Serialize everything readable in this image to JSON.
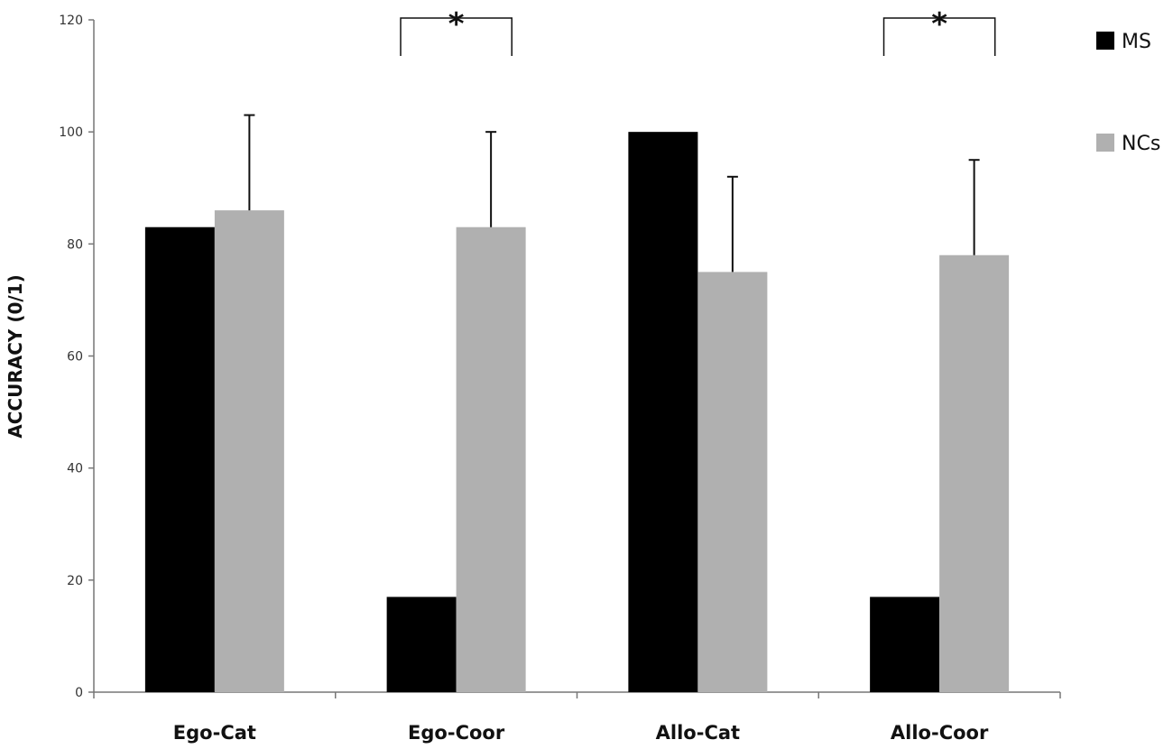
{
  "chart_data": {
    "type": "bar",
    "title": "",
    "xlabel": "",
    "ylabel": "ACCURACY (0/1)",
    "ylim": [
      0,
      120
    ],
    "yticks": [
      0,
      20,
      40,
      60,
      80,
      100,
      120
    ],
    "grid": false,
    "legend_placement": "top-right",
    "categories": [
      "Ego-Cat",
      "Ego-Coor",
      "Allo-Cat",
      "Allo-Coor"
    ],
    "series": [
      {
        "name": "MS",
        "color": "#000000",
        "values": [
          83,
          17,
          100,
          17
        ],
        "error_upper": [
          null,
          null,
          null,
          null
        ]
      },
      {
        "name": "NCs",
        "color": "#b0b0b0",
        "values": [
          86,
          83,
          75,
          78
        ],
        "error_upper": [
          103,
          100,
          92,
          95
        ]
      }
    ],
    "annotations": [
      {
        "text": "*",
        "category": "Ego-Coor",
        "type": "significance-bracket"
      },
      {
        "text": "*",
        "category": "Allo-Coor",
        "type": "significance-bracket"
      }
    ]
  }
}
